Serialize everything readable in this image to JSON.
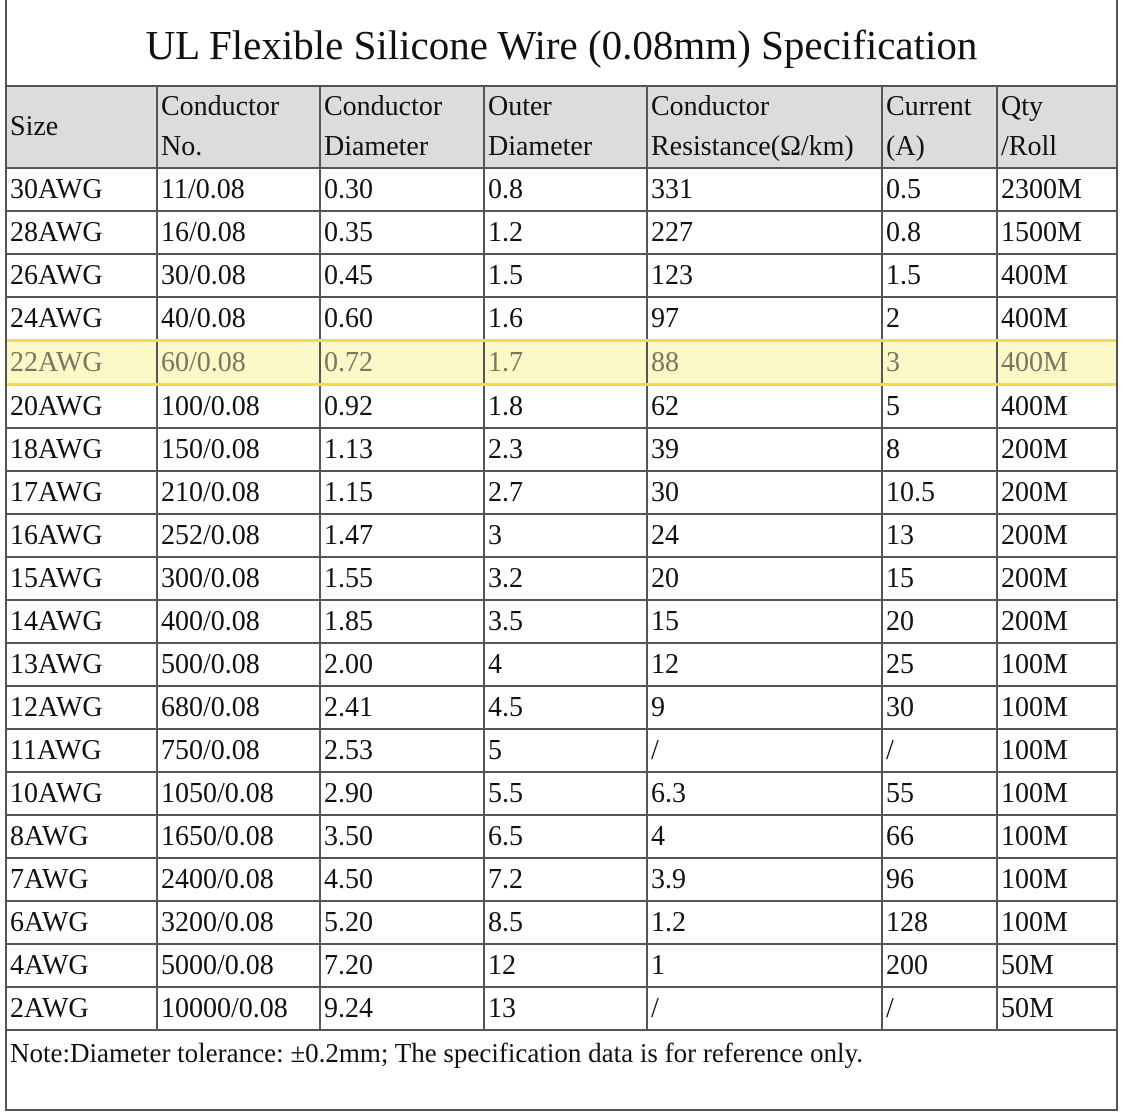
{
  "title": "UL Flexible Silicone Wire (0.08mm) Specification",
  "table": {
    "headers": [
      [
        "Size"
      ],
      [
        "Conductor",
        "No."
      ],
      [
        "Conductor",
        "Diameter"
      ],
      [
        "Outer",
        "Diameter"
      ],
      [
        "Conductor",
        "Resistance(Ω/km)"
      ],
      [
        "Current",
        "(A)"
      ],
      [
        "Qty",
        "/Roll"
      ]
    ],
    "rows": [
      [
        "30AWG",
        "11/0.08",
        "0.30",
        "0.8",
        "331",
        "0.5",
        "2300M"
      ],
      [
        "28AWG",
        "16/0.08",
        "0.35",
        "1.2",
        "227",
        "0.8",
        "1500M"
      ],
      [
        "26AWG",
        "30/0.08",
        "0.45",
        "1.5",
        "123",
        "1.5",
        "400M"
      ],
      [
        "24AWG",
        "40/0.08",
        "0.60",
        "1.6",
        "97",
        "2",
        "400M"
      ],
      [
        "22AWG",
        "60/0.08",
        "0.72",
        "1.7",
        "88",
        "3",
        "400M"
      ],
      [
        "20AWG",
        "100/0.08",
        "0.92",
        "1.8",
        "62",
        "5",
        "400M"
      ],
      [
        "18AWG",
        "150/0.08",
        "1.13",
        "2.3",
        "39",
        "8",
        "200M"
      ],
      [
        "17AWG",
        "210/0.08",
        "1.15",
        "2.7",
        "30",
        "10.5",
        "200M"
      ],
      [
        "16AWG",
        "252/0.08",
        "1.47",
        "3",
        "24",
        "13",
        "200M"
      ],
      [
        "15AWG",
        "300/0.08",
        "1.55",
        "3.2",
        "20",
        "15",
        "200M"
      ],
      [
        "14AWG",
        "400/0.08",
        "1.85",
        "3.5",
        "15",
        "20",
        "200M"
      ],
      [
        "13AWG",
        "500/0.08",
        "2.00",
        "4",
        "12",
        "25",
        "100M"
      ],
      [
        "12AWG",
        "680/0.08",
        "2.41",
        "4.5",
        "9",
        "30",
        "100M"
      ],
      [
        "11AWG",
        "750/0.08",
        "2.53",
        "5",
        "/",
        "/",
        "100M"
      ],
      [
        "10AWG",
        "1050/0.08",
        "2.90",
        "5.5",
        "6.3",
        "55",
        "100M"
      ],
      [
        "8AWG",
        "1650/0.08",
        "3.50",
        "6.5",
        "4",
        "66",
        "100M"
      ],
      [
        "7AWG",
        "2400/0.08",
        "4.50",
        "7.2",
        "3.9",
        "96",
        "100M"
      ],
      [
        "6AWG",
        "3200/0.08",
        "5.20",
        "8.5",
        "1.2",
        "128",
        "100M"
      ],
      [
        "4AWG",
        "5000/0.08",
        "7.20",
        "12",
        "1",
        "200",
        "50M"
      ],
      [
        "2AWG",
        "10000/0.08",
        "9.24",
        "13",
        "/",
        "/",
        "50M"
      ]
    ]
  },
  "note": "Note:Diameter tolerance: ±0.2mm; The specification data is for reference only."
}
